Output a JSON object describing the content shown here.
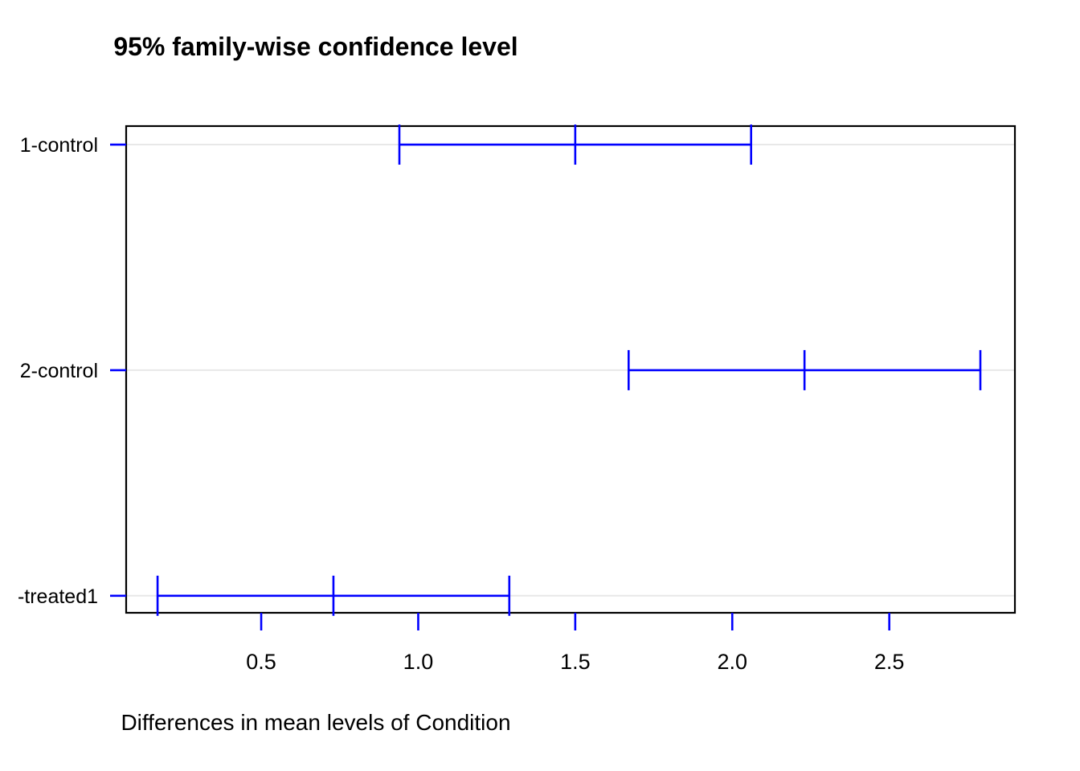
{
  "chart_data": {
    "type": "scatter",
    "subtype": "tukey-hsd-family-wise-confidence-intervals",
    "title": "95% family-wise confidence level",
    "xlabel": "Differences in mean levels of Condition",
    "ylabel": "",
    "xlim": [
      0.07,
      2.9
    ],
    "x_ticks": [
      0.5,
      1.0,
      1.5,
      2.0,
      2.5
    ],
    "x_tick_labels": [
      "0.5",
      "1.0",
      "1.5",
      "2.0",
      "2.5"
    ],
    "grid": "light horizontal reference line at each comparison row",
    "legend": "none",
    "comparisons": [
      {
        "label": "1-control",
        "lower": 0.94,
        "estimate": 1.5,
        "upper": 2.06
      },
      {
        "label": "2-control",
        "lower": 1.67,
        "estimate": 2.23,
        "upper": 2.79
      },
      {
        "label": "-treated1",
        "lower": 0.17,
        "estimate": 0.73,
        "upper": 1.29
      }
    ],
    "colors": {
      "interval": "#0000ff",
      "tick": "#0000ff",
      "frame": "#000000",
      "grid_line": "#e8e8e8",
      "text": "#000000",
      "background": "#ffffff"
    }
  }
}
